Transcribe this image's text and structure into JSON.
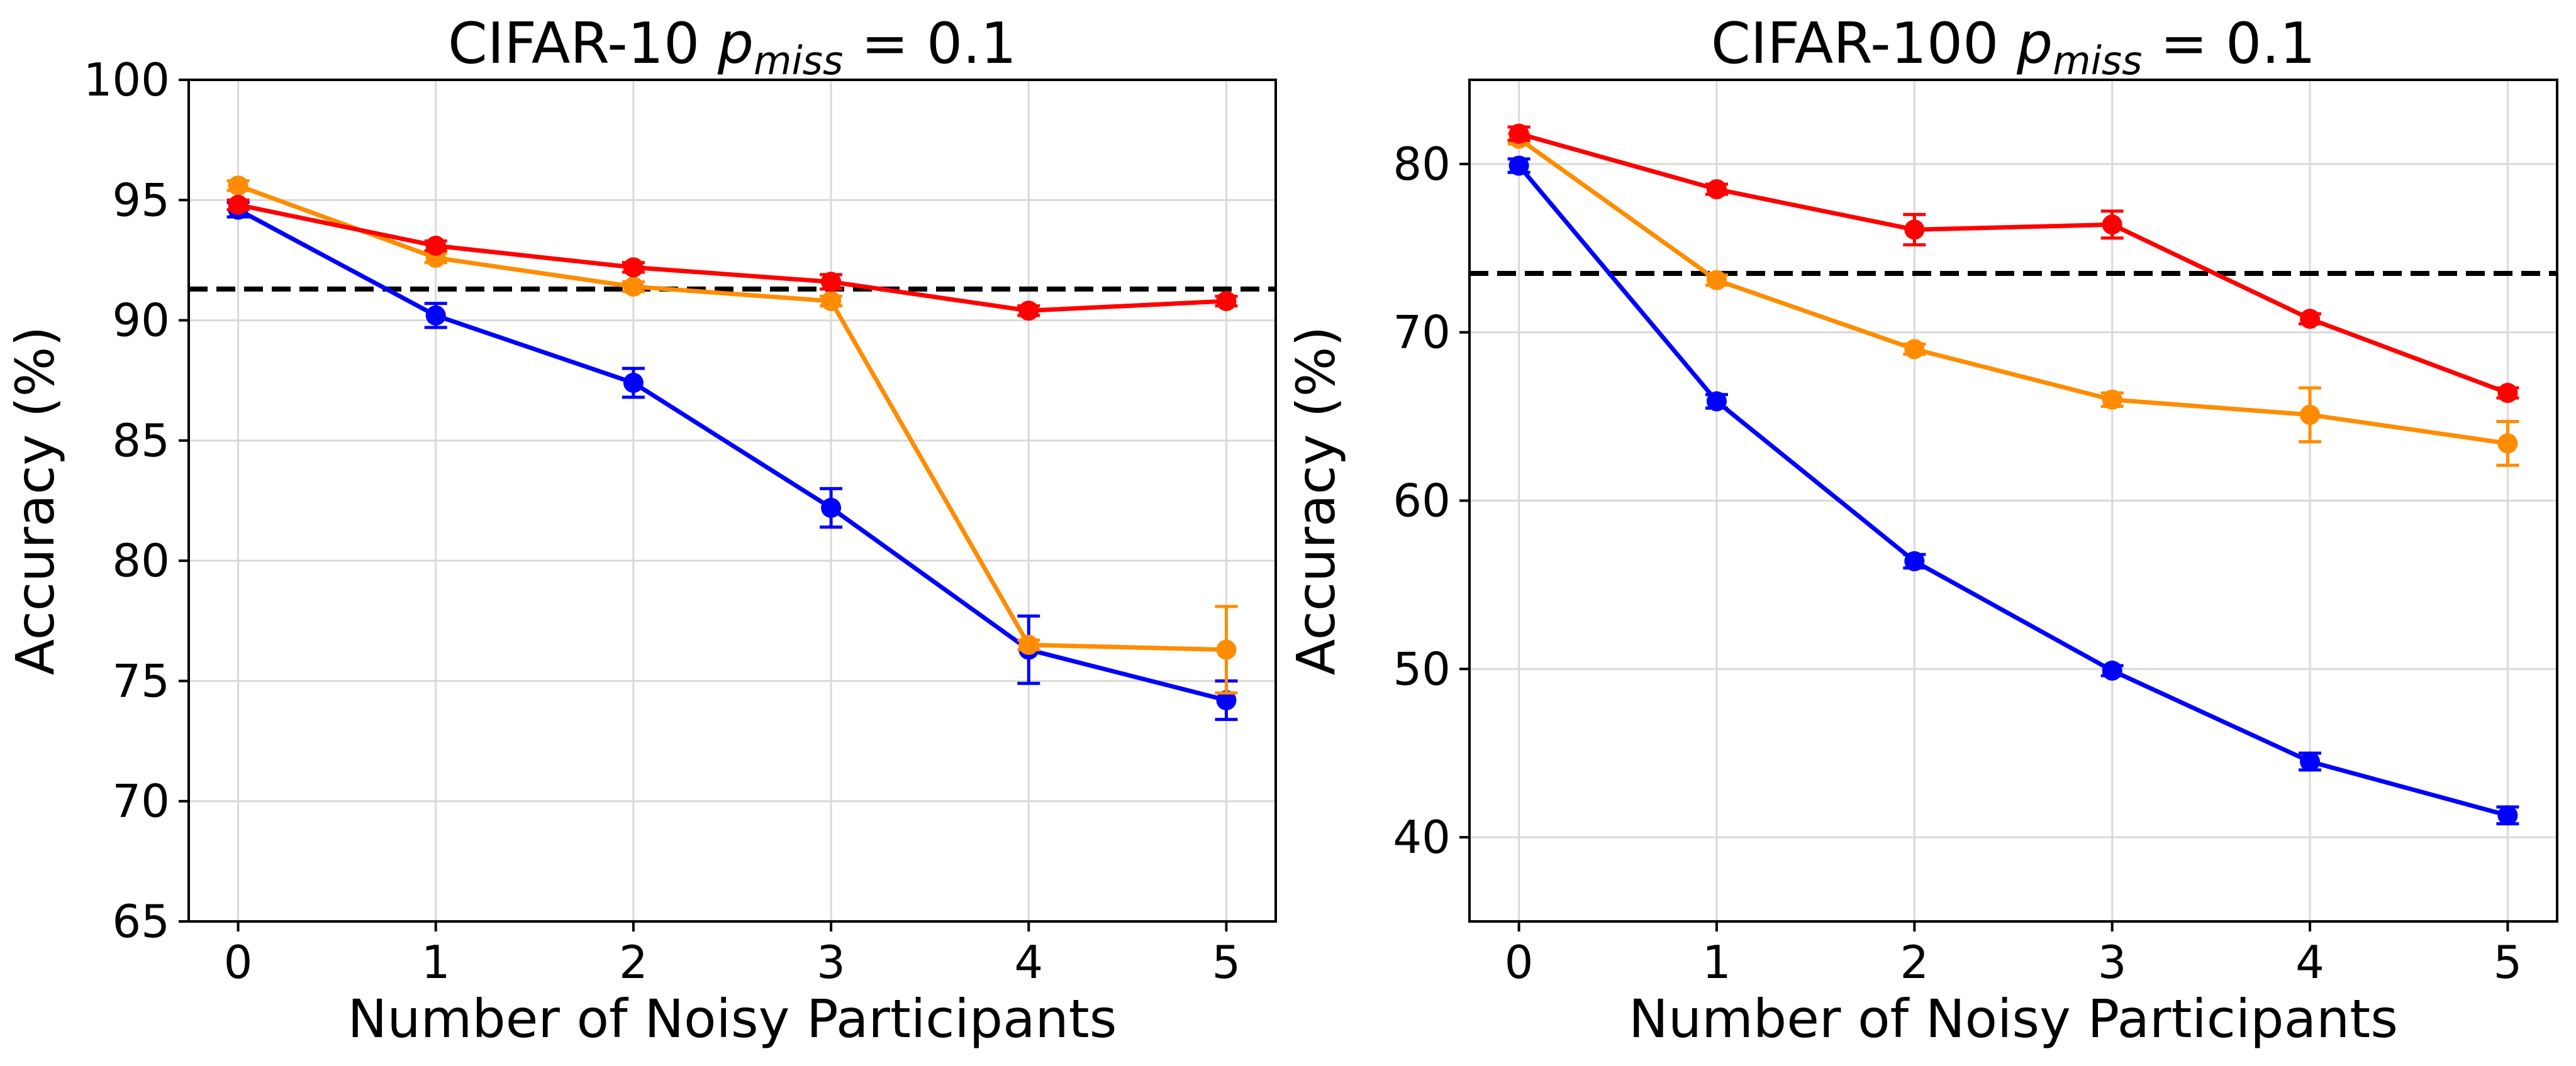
{
  "chart_data": [
    {
      "type": "line",
      "title_prefix": "CIFAR-10 ",
      "title_var": "p",
      "title_sub": "miss",
      "title_suffix": " = 0.1",
      "xlabel": "Number of Noisy Participants",
      "ylabel": "Accuracy (%)",
      "x": [
        0,
        1,
        2,
        3,
        4,
        5
      ],
      "xlim": [
        -0.25,
        5.25
      ],
      "ylim": [
        65,
        100
      ],
      "yticks": [
        65,
        70,
        75,
        80,
        85,
        90,
        95,
        100
      ],
      "grid": true,
      "baseline": 91.3,
      "series": [
        {
          "name": "blue",
          "color": "#0000ff",
          "values": [
            94.6,
            90.2,
            87.4,
            82.2,
            76.3,
            74.2
          ],
          "errors": [
            0.3,
            0.5,
            0.6,
            0.8,
            1.4,
            0.8
          ]
        },
        {
          "name": "orange",
          "color": "#ff8c00",
          "values": [
            95.6,
            92.6,
            91.4,
            90.8,
            76.5,
            76.3
          ],
          "errors": [
            0.2,
            0.2,
            0.2,
            0.2,
            0.2,
            1.8
          ]
        },
        {
          "name": "red",
          "color": "#ff0000",
          "values": [
            94.8,
            93.1,
            92.2,
            91.6,
            90.4,
            90.8
          ],
          "errors": [
            0.2,
            0.2,
            0.2,
            0.3,
            0.2,
            0.2
          ]
        }
      ]
    },
    {
      "type": "line",
      "title_prefix": "CIFAR-100 ",
      "title_var": "p",
      "title_sub": "miss",
      "title_suffix": " = 0.1",
      "xlabel": "Number of Noisy Participants",
      "ylabel": "Accuracy (%)",
      "x": [
        0,
        1,
        2,
        3,
        4,
        5
      ],
      "xlim": [
        -0.25,
        5.25
      ],
      "ylim": [
        35,
        85
      ],
      "yticks": [
        40,
        50,
        60,
        70,
        80
      ],
      "grid": true,
      "baseline": 73.5,
      "series": [
        {
          "name": "blue",
          "color": "#0000ff",
          "values": [
            79.9,
            65.9,
            56.4,
            49.9,
            44.5,
            41.3
          ],
          "errors": [
            0.4,
            0.4,
            0.4,
            0.3,
            0.5,
            0.5
          ]
        },
        {
          "name": "orange",
          "color": "#ff8c00",
          "values": [
            81.5,
            73.1,
            69.0,
            66.0,
            65.1,
            63.4
          ],
          "errors": [
            0.3,
            0.3,
            0.3,
            0.4,
            1.6,
            1.3
          ]
        },
        {
          "name": "red",
          "color": "#ff0000",
          "values": [
            81.8,
            78.5,
            76.1,
            76.4,
            70.8,
            66.4
          ],
          "errors": [
            0.4,
            0.3,
            0.9,
            0.8,
            0.3,
            0.3
          ]
        }
      ]
    }
  ]
}
